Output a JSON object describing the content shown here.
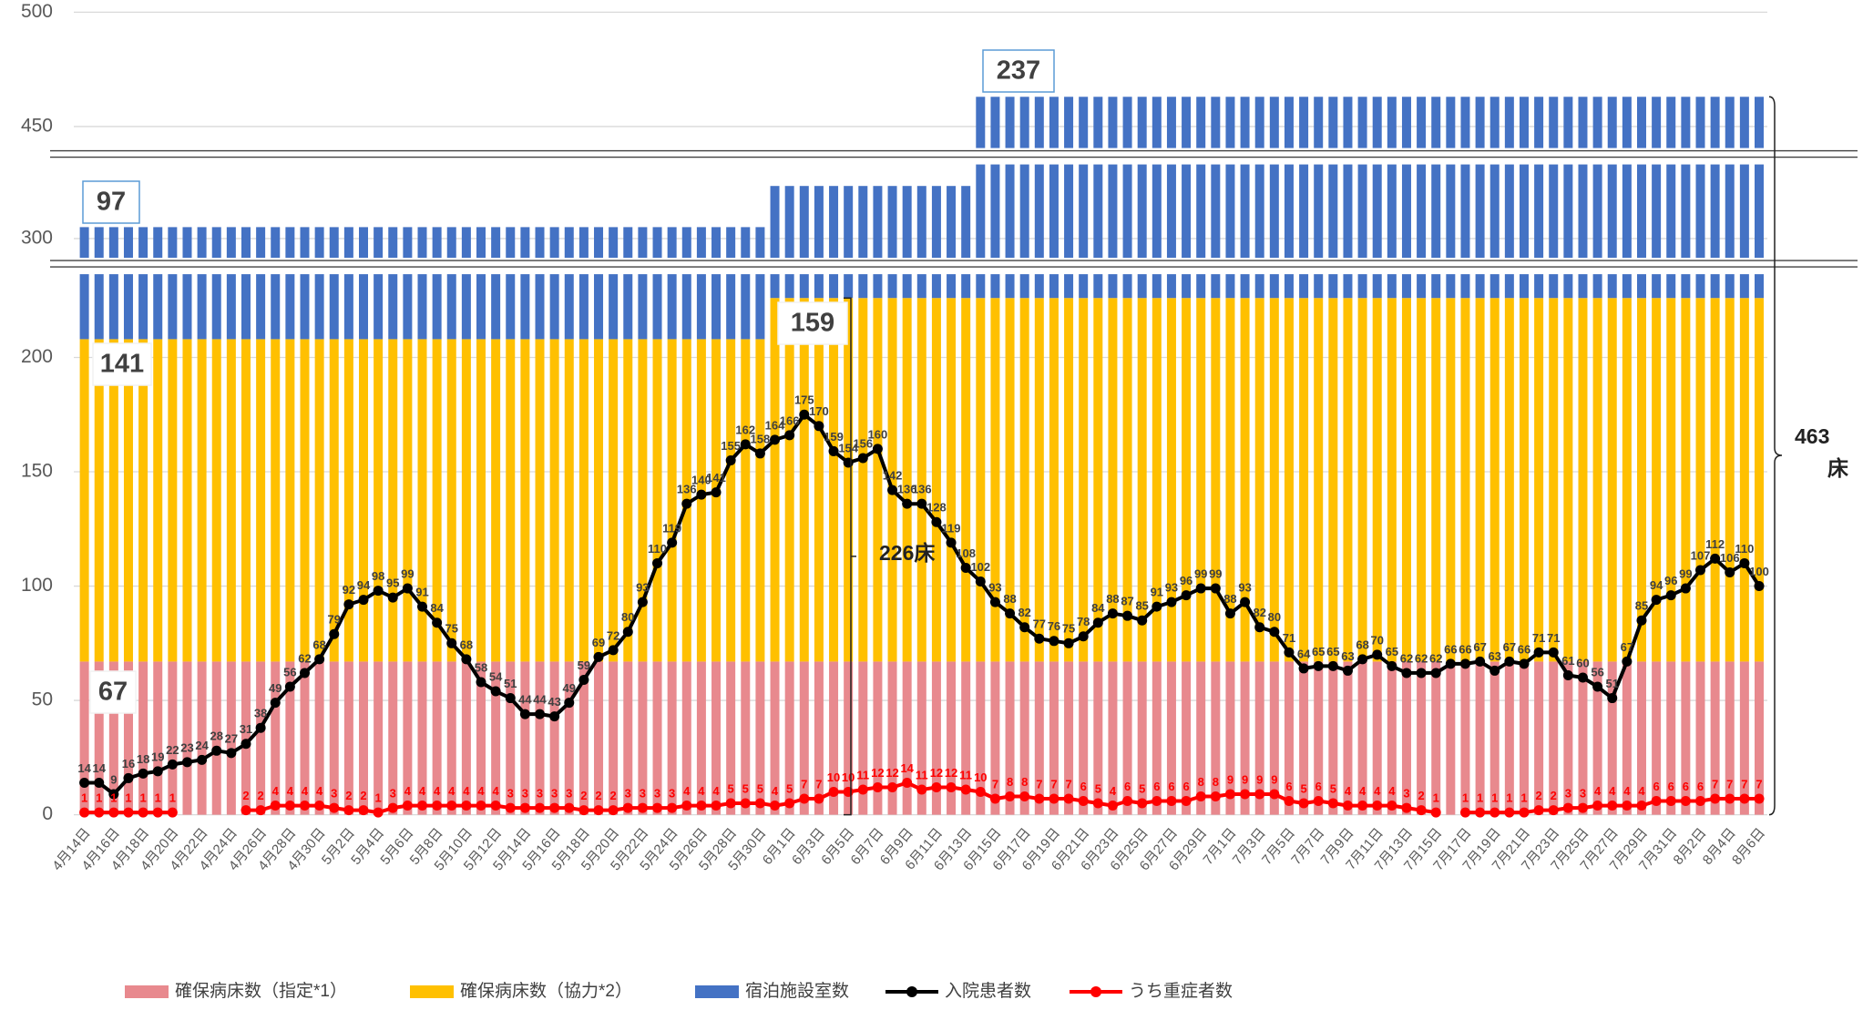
{
  "chart_data": {
    "type": "bar",
    "categories": [
      "4月14日",
      null,
      "4月16日",
      null,
      "4月18日",
      null,
      "4月20日",
      null,
      "4月22日",
      null,
      "4月24日",
      null,
      "4月26日",
      null,
      "4月28日",
      null,
      "4月30日",
      null,
      "5月2日",
      null,
      "5月4日",
      null,
      "5月6日",
      null,
      "5月8日",
      null,
      "5月10日",
      null,
      "5月12日",
      null,
      "5月14日",
      null,
      "5月16日",
      null,
      "5月18日",
      null,
      "5月20日",
      null,
      "5月22日",
      null,
      "5月24日",
      null,
      "5月26日",
      null,
      "5月28日",
      null,
      "5月30日",
      null,
      "6月1日",
      null,
      "6月3日",
      null,
      "6月5日",
      null,
      "6月7日",
      null,
      "6月9日",
      null,
      "6月11日",
      null,
      "6月13日",
      null,
      "6月15日",
      null,
      "6月17日",
      null,
      "6月19日",
      null,
      "6月21日",
      null,
      "6月23日",
      null,
      "6月25日",
      null,
      "6月27日",
      null,
      "6月29日",
      null,
      "7月1日",
      null,
      "7月3日",
      null,
      "7月5日",
      null,
      "7月7日",
      null,
      "7月9日",
      null,
      "7月11日",
      null,
      "7月13日",
      null,
      "7月15日",
      null,
      "7月17日",
      null,
      "7月19日",
      null,
      "7月21日",
      null,
      "7月23日",
      null,
      "7月25日",
      null,
      "7月27日",
      null,
      "7月29日",
      null,
      "7月31日",
      null,
      "8月2日",
      null,
      "8月4日",
      null,
      "8月6日"
    ],
    "series": [
      {
        "name": "確保病床数（指定*1）",
        "type": "bar",
        "color": "#e8898e",
        "values": [
          67,
          67,
          67,
          67,
          67,
          67,
          67,
          67,
          67,
          67,
          67,
          67,
          67,
          67,
          67,
          67,
          67,
          67,
          67,
          67,
          67,
          67,
          67,
          67,
          67,
          67,
          67,
          67,
          67,
          67,
          67,
          67,
          67,
          67,
          67,
          67,
          67,
          67,
          67,
          67,
          67,
          67,
          67,
          67,
          67,
          67,
          67,
          67,
          67,
          67,
          67,
          67,
          67,
          67,
          67,
          67,
          67,
          67,
          67,
          67,
          67,
          67,
          67,
          67,
          67,
          67,
          67,
          67,
          67,
          67,
          67,
          67,
          67,
          67,
          67,
          67,
          67,
          67,
          67,
          67,
          67,
          67,
          67,
          67,
          67,
          67,
          67,
          67,
          67,
          67,
          67,
          67,
          67,
          67,
          67,
          67,
          67,
          67,
          67,
          67,
          67,
          67,
          67,
          67,
          67,
          67,
          67,
          67,
          67,
          67,
          67,
          67,
          67,
          67,
          67
        ]
      },
      {
        "name": "確保病床数（協力*2）",
        "type": "bar",
        "color": "#ffc000",
        "values": [
          141,
          141,
          141,
          141,
          141,
          141,
          141,
          141,
          141,
          141,
          141,
          141,
          141,
          141,
          141,
          141,
          141,
          141,
          141,
          141,
          141,
          141,
          141,
          141,
          141,
          141,
          141,
          141,
          141,
          141,
          141,
          141,
          141,
          141,
          141,
          141,
          141,
          141,
          141,
          141,
          141,
          141,
          141,
          141,
          141,
          141,
          141,
          159,
          159,
          159,
          159,
          159,
          159,
          159,
          159,
          159,
          159,
          159,
          159,
          159,
          159,
          159,
          159,
          159,
          159,
          159,
          159,
          159,
          159,
          159,
          159,
          159,
          159,
          159,
          159,
          159,
          159,
          159,
          159,
          159,
          159,
          159,
          159,
          159,
          159,
          159,
          159,
          159,
          159,
          159,
          159,
          159,
          159,
          159,
          159,
          159,
          159,
          159,
          159,
          159,
          159,
          159,
          159,
          159,
          159,
          159,
          159,
          159,
          159,
          159,
          159,
          159,
          159,
          159,
          159
        ]
      },
      {
        "name": "宿泊施設室数",
        "type": "bar",
        "color": "#4472c4",
        "values": [
          97,
          97,
          97,
          97,
          97,
          97,
          97,
          97,
          97,
          97,
          97,
          97,
          97,
          97,
          97,
          97,
          97,
          97,
          97,
          97,
          97,
          97,
          97,
          97,
          97,
          97,
          97,
          97,
          97,
          97,
          97,
          97,
          97,
          97,
          97,
          97,
          97,
          97,
          97,
          97,
          97,
          97,
          97,
          97,
          97,
          97,
          97,
          97,
          97,
          97,
          97,
          97,
          97,
          97,
          97,
          97,
          97,
          97,
          97,
          97,
          97,
          237,
          237,
          237,
          237,
          237,
          237,
          237,
          237,
          237,
          237,
          237,
          237,
          237,
          237,
          237,
          237,
          237,
          237,
          237,
          237,
          237,
          237,
          237,
          237,
          237,
          237,
          237,
          237,
          237,
          237,
          237,
          237,
          237,
          237,
          237,
          237,
          237,
          237,
          237,
          237,
          237,
          237,
          237,
          237,
          237,
          237,
          237,
          237,
          237,
          237,
          237,
          237,
          237,
          237
        ]
      },
      {
        "name": "入院患者数",
        "type": "line",
        "color": "#000000",
        "values": [
          14,
          14,
          9,
          16,
          18,
          19,
          22,
          23,
          24,
          28,
          27,
          31,
          38,
          49,
          56,
          62,
          68,
          79,
          92,
          94,
          98,
          95,
          99,
          91,
          84,
          75,
          68,
          58,
          54,
          51,
          44,
          44,
          43,
          49,
          59,
          69,
          72,
          80,
          93,
          110,
          119,
          136,
          140,
          141,
          155,
          162,
          158,
          164,
          166,
          175,
          170,
          159,
          154,
          156,
          160,
          142,
          136,
          136,
          128,
          119,
          108,
          102,
          93,
          88,
          82,
          77,
          76,
          75,
          78,
          84,
          88,
          87,
          85,
          91,
          93,
          96,
          99,
          99,
          88,
          93,
          82,
          80,
          71,
          64,
          65,
          65,
          63,
          68,
          70,
          65,
          62,
          62,
          62,
          66,
          66,
          67,
          63,
          67,
          66,
          71,
          71,
          61,
          60,
          56,
          51,
          67,
          85,
          94,
          96,
          99,
          107,
          112,
          106,
          110,
          100
        ]
      },
      {
        "name": "うち重症者数",
        "type": "line",
        "color": "#ff0000",
        "values": [
          1,
          1,
          1,
          1,
          1,
          1,
          1,
          null,
          null,
          null,
          null,
          2,
          2,
          4,
          4,
          4,
          4,
          3,
          2,
          2,
          1,
          3,
          4,
          4,
          4,
          4,
          4,
          4,
          4,
          3,
          3,
          3,
          3,
          3,
          2,
          2,
          2,
          3,
          3,
          3,
          3,
          4,
          4,
          4,
          5,
          5,
          5,
          4,
          5,
          7,
          7,
          10,
          10,
          11,
          12,
          12,
          14,
          11,
          12,
          12,
          11,
          10,
          7,
          8,
          8,
          7,
          7,
          7,
          6,
          5,
          4,
          6,
          5,
          6,
          6,
          6,
          8,
          8,
          9,
          9,
          9,
          9,
          6,
          5,
          6,
          5,
          4,
          4,
          4,
          4,
          3,
          2,
          1,
          null,
          1,
          1,
          1,
          1,
          1,
          2,
          2,
          3,
          3,
          4,
          4,
          4,
          4,
          6,
          6,
          6,
          6,
          7,
          7,
          7,
          7
        ]
      }
    ],
    "ylim": [
      0,
      500
    ],
    "yticks": [
      0,
      50,
      100,
      150,
      200,
      300,
      450,
      500
    ],
    "y_breaks": [
      [
        240,
        288
      ],
      [
        336,
        437
      ]
    ],
    "grid": true,
    "legend": "bottom",
    "annotations": [
      "226床",
      "463",
      "床"
    ]
  }
}
